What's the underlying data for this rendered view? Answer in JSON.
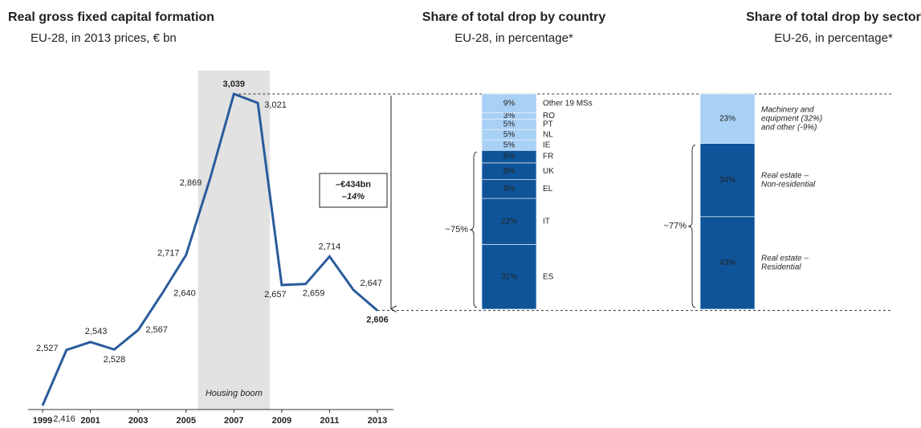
{
  "chart_data": [
    {
      "type": "line",
      "title": "Real gross fixed capital formation",
      "subtitle": "EU-28, in 2013 prices, € bn",
      "x": [
        1999,
        2000,
        2001,
        2002,
        2003,
        2004,
        2005,
        2006,
        2007,
        2008,
        2009,
        2010,
        2011,
        2012,
        2013
      ],
      "values": [
        2416,
        2527,
        2543,
        2528,
        2567,
        2640,
        2717,
        2869,
        3039,
        3021,
        2657,
        2659,
        2714,
        2647,
        2606
      ],
      "value_labels": [
        "2,416",
        "2,527",
        "2,543",
        "2,528",
        "2,567",
        "2,640",
        "2,717",
        "2,869",
        "3,039",
        "3,021",
        "2,657",
        "2,659",
        "2,714",
        "2,647",
        "2,606"
      ],
      "color": "#2a5b9c",
      "xlim": [
        1999,
        2013
      ],
      "xticks": [
        1999,
        2001,
        2003,
        2005,
        2007,
        2009,
        2011,
        2013
      ],
      "highlight": {
        "label": "Housing boom",
        "from": 2005.5,
        "to": 2008.5
      },
      "annotation": {
        "amount": "–€434bn",
        "percent": "–14%"
      }
    },
    {
      "type": "stacked_bar",
      "title": "Share of total drop by country",
      "subtitle": "EU-28, in percentage*",
      "categories": [
        "ES",
        "IT",
        "EL",
        "UK",
        "FR",
        "IE",
        "NL",
        "PT",
        "RO",
        "Other 19 MSs"
      ],
      "values": [
        31,
        22,
        9,
        8,
        6,
        5,
        5,
        5,
        3,
        9
      ],
      "value_labels": [
        "31%",
        "22%",
        "9%",
        "8%",
        "6%",
        "5%",
        "5%",
        "5%",
        "3%",
        "9%"
      ],
      "colors": [
        "#0f5499",
        "#0f5499",
        "#0f5499",
        "#0f5499",
        "#0f5499",
        "#a9d0f5",
        "#a9d0f5",
        "#a9d0f5",
        "#a9d0f5",
        "#a9d0f5"
      ],
      "brace_label": "~75%"
    },
    {
      "type": "stacked_bar",
      "title": "Share of total drop by sector",
      "subtitle": "EU-26, in percentage*",
      "categories": [
        [
          "Real estate –",
          "Residential"
        ],
        [
          "Real estate –",
          "Non-residential"
        ],
        [
          "Machinery and",
          "equipment (32%)",
          "and other (-9%)"
        ]
      ],
      "values": [
        43,
        34,
        23
      ],
      "value_labels": [
        "43%",
        "34%",
        "23%"
      ],
      "colors": [
        "#0f5499",
        "#0f5499",
        "#a9d0f5"
      ],
      "brace_label": "~77%"
    }
  ]
}
